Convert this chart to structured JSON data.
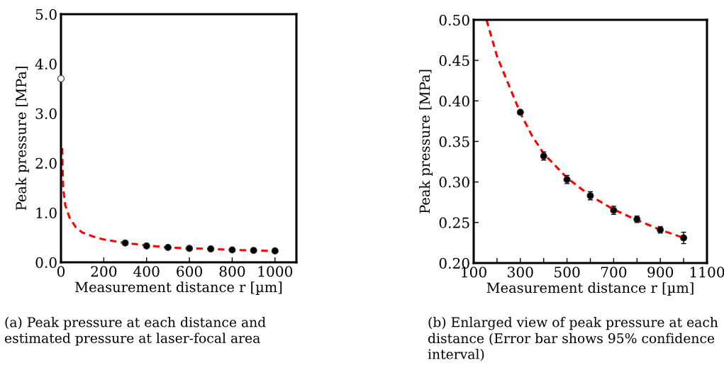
{
  "chart_data": [
    {
      "type": "scatter",
      "xlabel": "Measurement distance r [µm]",
      "ylabel": "Peak pressure [MPa]",
      "xlim": [
        0,
        1100
      ],
      "xticks": [
        0,
        200,
        400,
        600,
        800,
        1000
      ],
      "ylim": [
        0,
        5
      ],
      "yticks": [
        {
          "value": 0,
          "label": "0.0"
        },
        {
          "value": 1,
          "label": "1.0"
        },
        {
          "value": 2,
          "label": "2.0"
        },
        {
          "value": 3,
          "label": "3.0"
        },
        {
          "value": 4,
          "label": "4.0"
        },
        {
          "value": 5,
          "label": "5.0"
        }
      ],
      "grid": false,
      "legend": false,
      "series": [
        {
          "type": "line",
          "color": "#ff0000",
          "line_style": "dashed",
          "marker": "none",
          "x": [
            5,
            10,
            20,
            40,
            70,
            100,
            150,
            200,
            300,
            400,
            500,
            600,
            700,
            800,
            900,
            1000
          ],
          "values": [
            2.3,
            1.5,
            1.15,
            0.9,
            0.7,
            0.6,
            0.52,
            0.46,
            0.39,
            0.34,
            0.3,
            0.28,
            0.27,
            0.25,
            0.24,
            0.23
          ]
        },
        {
          "color": "#000000",
          "marker": "circle",
          "x": [
            300,
            400,
            500,
            600,
            700,
            800,
            900,
            1000
          ],
          "values": [
            0.39,
            0.33,
            0.3,
            0.28,
            0.27,
            0.25,
            0.24,
            0.23
          ]
        },
        {
          "color": "#ffffff",
          "marker": "circle",
          "x": [
            0
          ],
          "values": [
            3.7
          ]
        }
      ],
      "annotations": [
        "(a) Peak pressure at each distance and estimated pressure at laser-focal area"
      ]
    },
    {
      "type": "scatter",
      "xlabel": "Measurement distance r [µm]",
      "ylabel": "Peak pressure [MPa]",
      "xlim": [
        100,
        1100
      ],
      "xticks": [
        100,
        {
          "value": 200,
          "label": null
        },
        300,
        {
          "value": 400,
          "label": null
        },
        500,
        {
          "value": 600,
          "label": null
        },
        700,
        {
          "value": 800,
          "label": null
        },
        900,
        {
          "value": 1000,
          "label": null
        },
        1100
      ],
      "ylim": [
        0.2,
        0.5
      ],
      "yticks": [
        {
          "value": 0.2,
          "label": "0.20"
        },
        0.25,
        {
          "value": 0.3,
          "label": "0.30"
        },
        0.35,
        {
          "value": 0.4,
          "label": "0.40"
        },
        0.45,
        {
          "value": 0.5,
          "label": "0.50"
        }
      ],
      "grid": false,
      "legend": false,
      "series": [
        {
          "type": "line",
          "color": "#ff0000",
          "line_style": "dashed",
          "marker": "none",
          "x": [
            155,
            180,
            200,
            250,
            300,
            350,
            400,
            500,
            600,
            700,
            800,
            900,
            1000
          ],
          "values": [
            0.5,
            0.475,
            0.455,
            0.42,
            0.385,
            0.357,
            0.335,
            0.305,
            0.283,
            0.266,
            0.253,
            0.241,
            0.231
          ]
        },
        {
          "color": "#000000",
          "marker": "circle",
          "x": [
            300,
            400,
            500,
            600,
            700,
            800,
            900,
            1000
          ],
          "values": [
            0.386,
            0.332,
            0.303,
            0.283,
            0.265,
            0.254,
            0.241,
            0.231
          ],
          "errors": [
            0.002,
            0.005,
            0.005,
            0.005,
            0.005,
            0.004,
            0.004,
            0.007
          ]
        }
      ],
      "annotations": [
        "(b) Enlarged view of peak pressure at each distance (Error bar shows 95% confidence interval)"
      ]
    }
  ]
}
